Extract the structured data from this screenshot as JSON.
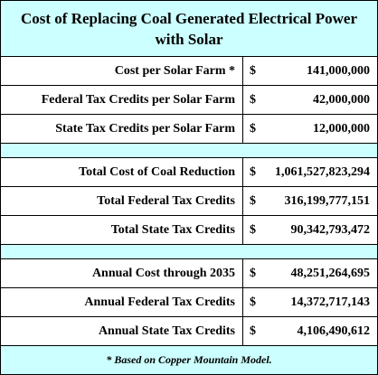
{
  "title": "Cost of Replacing Coal Generated Electrical Power with Solar",
  "sections": [
    {
      "rows": [
        {
          "label": "Cost per Solar Farm *",
          "currency": "$",
          "amount": "141,000,000"
        },
        {
          "label": "Federal Tax Credits per Solar Farm",
          "currency": "$",
          "amount": "42,000,000"
        },
        {
          "label": "State Tax Credits per Solar Farm",
          "currency": "$",
          "amount": "12,000,000"
        }
      ]
    },
    {
      "rows": [
        {
          "label": "Total Cost of Coal Reduction",
          "currency": "$",
          "amount": "1,061,527,823,294"
        },
        {
          "label": "Total Federal Tax Credits",
          "currency": "$",
          "amount": "316,199,777,151"
        },
        {
          "label": "Total State Tax Credits",
          "currency": "$",
          "amount": "90,342,793,472"
        }
      ]
    },
    {
      "rows": [
        {
          "label": "Annual Cost through 2035",
          "currency": "$",
          "amount": "48,251,264,695"
        },
        {
          "label": "Annual Federal Tax Credits",
          "currency": "$",
          "amount": "14,372,717,143"
        },
        {
          "label": "Annual State Tax Credits",
          "currency": "$",
          "amount": "4,106,490,612"
        }
      ]
    }
  ],
  "footnote": "* Based on Copper Mountain Model."
}
